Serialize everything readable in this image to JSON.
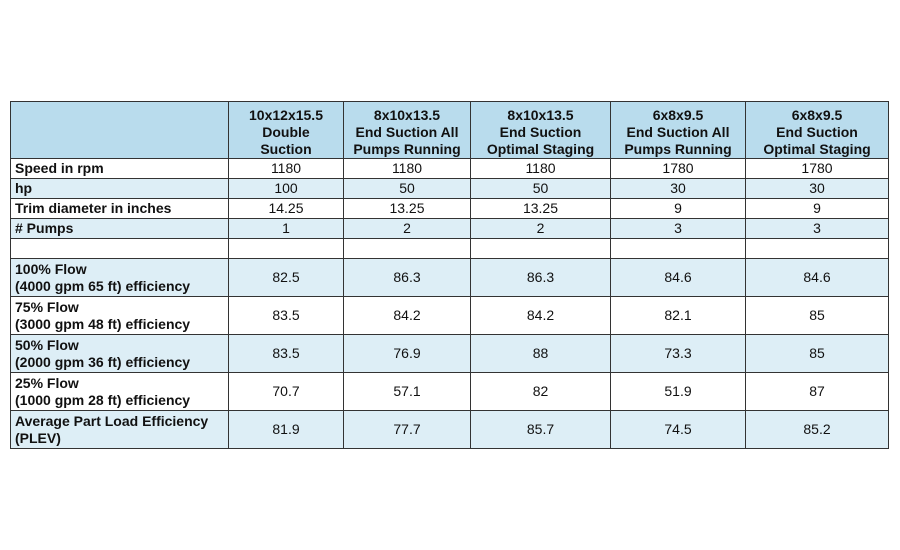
{
  "table": {
    "header": [
      [
        "10x12x15.5",
        "Double",
        "Suction"
      ],
      [
        "8x10x13.5",
        "End Suction All",
        "Pumps Running"
      ],
      [
        "8x10x13.5",
        "End Suction",
        "Optimal  Staging"
      ],
      [
        "6x8x9.5",
        "End Suction All",
        "Pumps Running"
      ],
      [
        "6x8x9.5",
        "End Suction",
        "Optimal Staging"
      ]
    ],
    "rows": [
      {
        "label": [
          "Speed in rpm"
        ],
        "values": [
          1180,
          1180,
          1180,
          1780,
          1780
        ]
      },
      {
        "label": [
          "hp"
        ],
        "values": [
          100,
          50,
          50,
          30,
          30
        ]
      },
      {
        "label": [
          "Trim diameter in inches"
        ],
        "values": [
          14.25,
          13.25,
          13.25,
          9,
          9
        ]
      },
      {
        "label": [
          "# Pumps"
        ],
        "values": [
          1,
          2,
          2,
          3,
          3
        ]
      },
      {
        "label": [
          "100% Flow",
          "(4000 gpm 65 ft) efficiency"
        ],
        "values": [
          82.5,
          86.3,
          86.3,
          84.6,
          84.6
        ]
      },
      {
        "label": [
          "75% Flow",
          "(3000 gpm 48 ft) efficiency"
        ],
        "values": [
          83.5,
          84.2,
          84.2,
          82.1,
          85
        ]
      },
      {
        "label": [
          "50% Flow",
          "(2000 gpm 36 ft) efficiency"
        ],
        "values": [
          83.5,
          76.9,
          88,
          73.3,
          85
        ]
      },
      {
        "label": [
          "25% Flow",
          "(1000 gpm 28 ft) efficiency"
        ],
        "values": [
          70.7,
          57.1,
          82,
          51.9,
          87
        ]
      },
      {
        "label": [
          "Average Part Load Efficiency",
          "(PLEV)"
        ],
        "values": [
          81.9,
          77.7,
          85.7,
          74.5,
          85.2
        ]
      }
    ]
  }
}
